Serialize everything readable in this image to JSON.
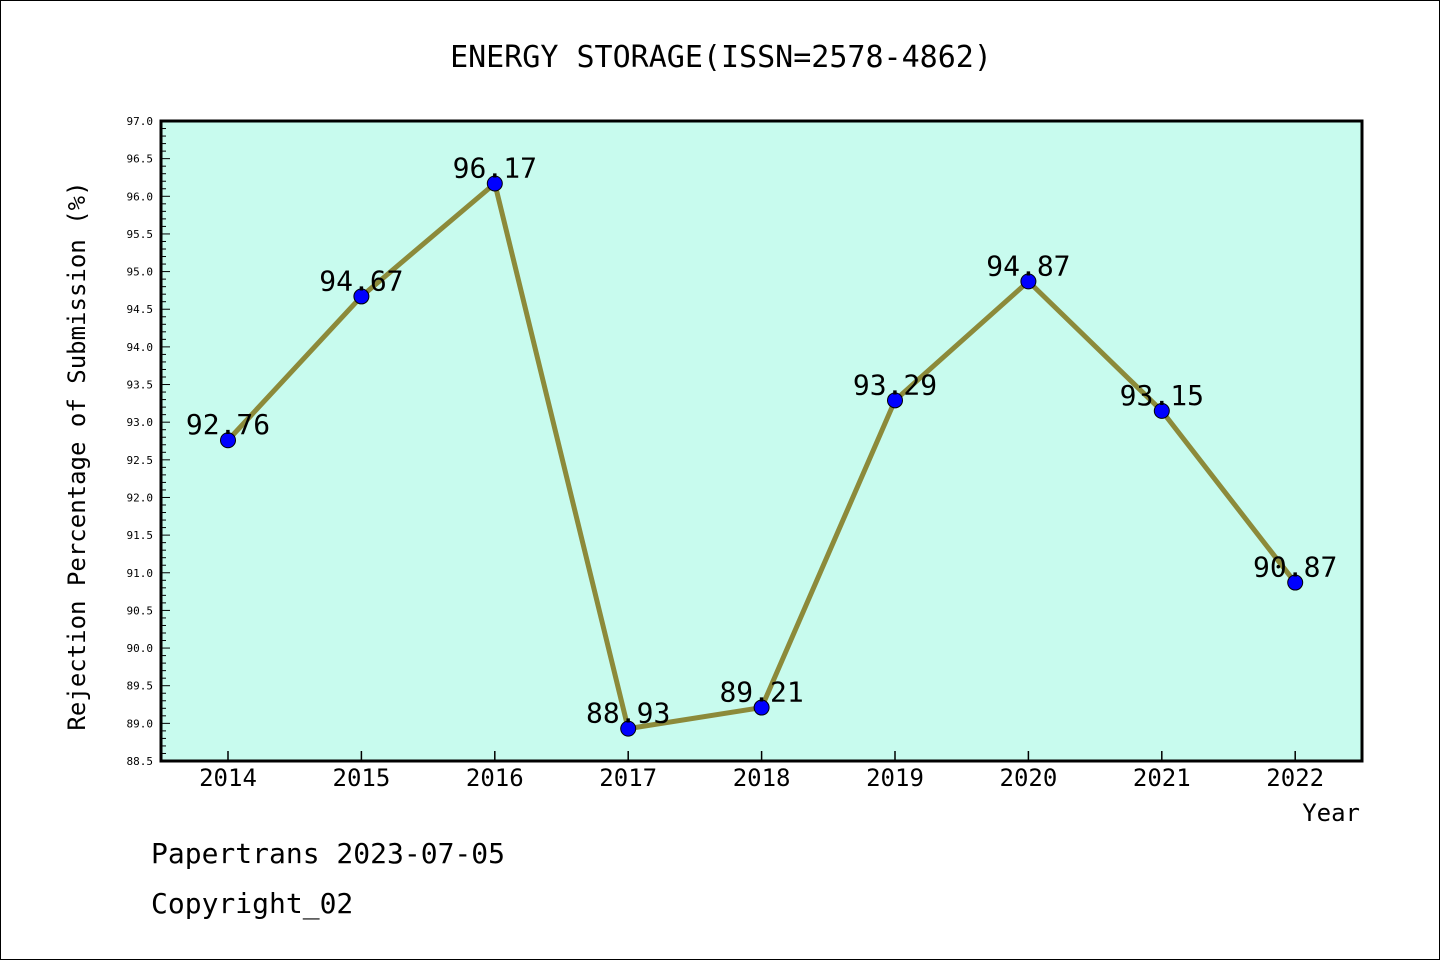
{
  "chart_data": {
    "type": "line",
    "title": "ENERGY STORAGE(ISSN=2578-4862)",
    "xlabel": "Year",
    "ylabel": "Rejection Percentage of Submission (%)",
    "categories": [
      "2014",
      "2015",
      "2016",
      "2017",
      "2018",
      "2019",
      "2020",
      "2021",
      "2022"
    ],
    "values": [
      92.76,
      94.67,
      96.17,
      88.93,
      89.21,
      93.29,
      94.87,
      93.15,
      90.87
    ],
    "data_labels": [
      "92.76",
      "94.67",
      "96.17",
      "88.93",
      "89.21",
      "93.29",
      "94.87",
      "93.15",
      "90.87"
    ],
    "ylim": [
      88.5,
      97.0
    ],
    "yticks": [
      "88.5",
      "89.0",
      "89.5",
      "90.0",
      "90.5",
      "91.0",
      "91.5",
      "92.0",
      "92.5",
      "93.0",
      "93.5",
      "94.0",
      "94.5",
      "95.0",
      "95.5",
      "96.0",
      "96.5",
      "97.0"
    ],
    "grid": false,
    "colors": {
      "plot_background": "#c8fbee",
      "line": "#8c8a3a",
      "marker": "#0000ff"
    }
  },
  "footer": {
    "line1": "Papertrans 2023-07-05",
    "line2": "Copyright_02"
  }
}
